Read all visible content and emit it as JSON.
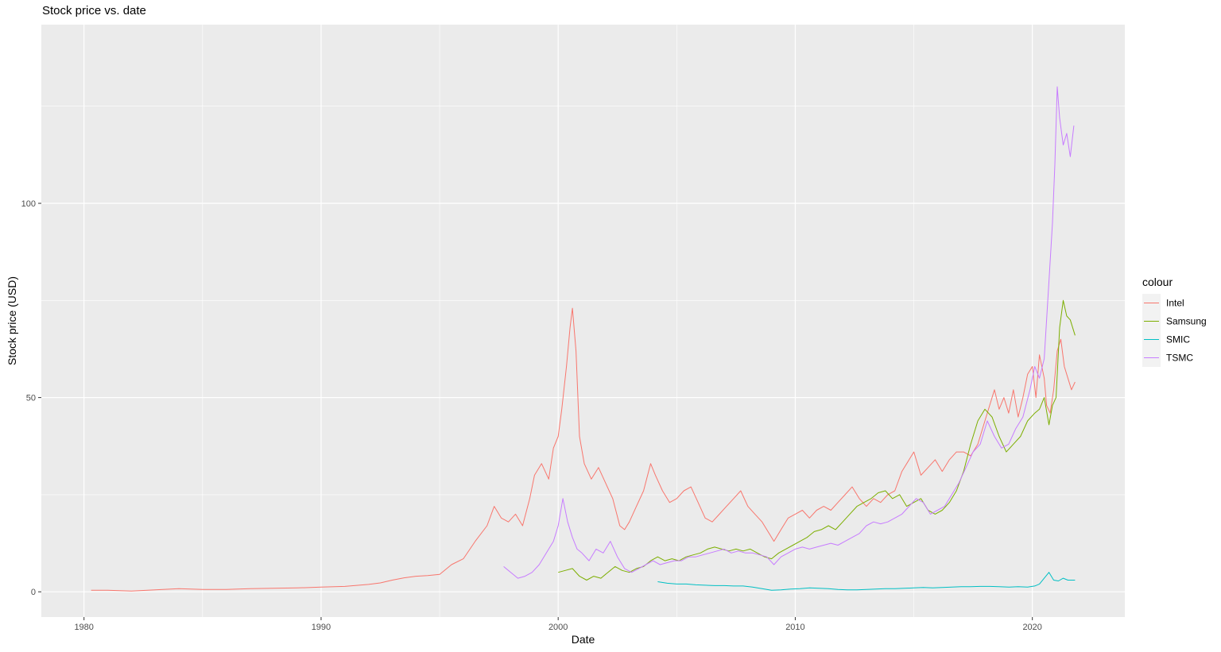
{
  "chart_data": {
    "type": "line",
    "title": "Stock price vs. date",
    "xlabel": "Date",
    "ylabel": "Stock price (USD)",
    "xlim": [
      1978.2,
      2023.9
    ],
    "ylim": [
      -6.5,
      146
    ],
    "x_ticks": [
      1980,
      1990,
      2000,
      2010,
      2020
    ],
    "x_tick_labels": [
      "1980",
      "1990",
      "2000",
      "2010",
      "2020"
    ],
    "y_ticks": [
      0,
      50,
      100
    ],
    "y_tick_labels": [
      "0",
      "50",
      "100"
    ],
    "grid": true,
    "legend": {
      "title": "colour",
      "position": "right"
    },
    "colors": {
      "panel": "#ebebeb",
      "grid": "#ffffff",
      "Intel": "#F8766D",
      "Samsung": "#7CAE00",
      "SMIC": "#00BFC4",
      "TSMC": "#C77CFF"
    },
    "series": [
      {
        "name": "Intel",
        "color": "#F8766D",
        "x": [
          1980.3,
          1981,
          1982,
          1983,
          1984,
          1985,
          1986,
          1987,
          1988,
          1989,
          1990,
          1991,
          1992,
          1992.5,
          1993,
          1993.5,
          1994,
          1994.5,
          1995,
          1995.5,
          1996,
          1996.5,
          1997,
          1997.3,
          1997.6,
          1997.9,
          1998.2,
          1998.5,
          1998.8,
          1999,
          1999.3,
          1999.6,
          1999.8,
          2000,
          2000.15,
          2000.35,
          2000.5,
          2000.6,
          2000.75,
          2000.9,
          2001.1,
          2001.4,
          2001.7,
          2002,
          2002.3,
          2002.6,
          2002.8,
          2003,
          2003.3,
          2003.6,
          2003.9,
          2004.1,
          2004.4,
          2004.7,
          2005,
          2005.3,
          2005.6,
          2005.9,
          2006.2,
          2006.5,
          2006.8,
          2007.1,
          2007.4,
          2007.7,
          2008,
          2008.3,
          2008.6,
          2008.9,
          2009.1,
          2009.4,
          2009.7,
          2010,
          2010.3,
          2010.6,
          2010.9,
          2011.2,
          2011.5,
          2011.8,
          2012.1,
          2012.4,
          2012.7,
          2013,
          2013.3,
          2013.6,
          2013.9,
          2014.2,
          2014.5,
          2014.8,
          2015,
          2015.3,
          2015.6,
          2015.9,
          2016.2,
          2016.5,
          2016.8,
          2017.1,
          2017.4,
          2017.7,
          2018,
          2018.2,
          2018.4,
          2018.6,
          2018.8,
          2019,
          2019.2,
          2019.4,
          2019.6,
          2019.8,
          2020,
          2020.15,
          2020.3,
          2020.5,
          2020.6,
          2020.75,
          2020.9,
          2021.05,
          2021.2,
          2021.35,
          2021.5,
          2021.65,
          2021.8
        ],
        "values": [
          0.4,
          0.4,
          0.2,
          0.5,
          0.8,
          0.6,
          0.6,
          0.8,
          0.9,
          1.0,
          1.2,
          1.4,
          1.9,
          2.3,
          3.0,
          3.6,
          4.0,
          4.2,
          4.5,
          7.0,
          8.5,
          13.0,
          17.0,
          22.0,
          19.0,
          18.0,
          20.0,
          17.0,
          24.0,
          30.0,
          33.0,
          29.0,
          37.0,
          40.0,
          47.0,
          58.0,
          68.0,
          73.0,
          62.0,
          40.0,
          33.0,
          29.0,
          32.0,
          28.0,
          24.0,
          17.0,
          16.0,
          18.0,
          22.0,
          26.0,
          33.0,
          30.0,
          26.0,
          23.0,
          24.0,
          26.0,
          27.0,
          23.0,
          19.0,
          18.0,
          20.0,
          22.0,
          24.0,
          26.0,
          22.0,
          20.0,
          18.0,
          15.0,
          13.0,
          16.0,
          19.0,
          20.0,
          21.0,
          19.0,
          21.0,
          22.0,
          21.0,
          23.0,
          25.0,
          27.0,
          24.0,
          22.0,
          24.0,
          23.0,
          25.0,
          26.0,
          31.0,
          34.0,
          36.0,
          30.0,
          32.0,
          34.0,
          31.0,
          34.0,
          36.0,
          36.0,
          35.0,
          38.0,
          44.0,
          48.0,
          52.0,
          47.0,
          50.0,
          46.0,
          52.0,
          45.0,
          50.0,
          56.0,
          58.0,
          50.0,
          61.0,
          55.0,
          48.0,
          46.0,
          52.0,
          62.0,
          65.0,
          58.0,
          55.0,
          52.0,
          54.0
        ]
      },
      {
        "name": "Samsung",
        "color": "#7CAE00",
        "x": [
          2000.0,
          2000.3,
          2000.6,
          2000.9,
          2001.2,
          2001.5,
          2001.8,
          2002.1,
          2002.4,
          2002.7,
          2003.0,
          2003.3,
          2003.6,
          2003.9,
          2004.2,
          2004.5,
          2004.8,
          2005.1,
          2005.4,
          2005.7,
          2006.0,
          2006.3,
          2006.6,
          2006.9,
          2007.2,
          2007.5,
          2007.8,
          2008.1,
          2008.4,
          2008.7,
          2009.0,
          2009.3,
          2009.6,
          2009.9,
          2010.2,
          2010.5,
          2010.8,
          2011.1,
          2011.4,
          2011.7,
          2012.0,
          2012.3,
          2012.6,
          2012.9,
          2013.2,
          2013.5,
          2013.8,
          2014.1,
          2014.4,
          2014.7,
          2015.0,
          2015.3,
          2015.6,
          2015.9,
          2016.2,
          2016.5,
          2016.8,
          2017.1,
          2017.4,
          2017.7,
          2018.0,
          2018.3,
          2018.6,
          2018.9,
          2019.2,
          2019.5,
          2019.8,
          2020.1,
          2020.3,
          2020.5,
          2020.7,
          2020.85,
          2021.0,
          2021.15,
          2021.3,
          2021.45,
          2021.6,
          2021.8
        ],
        "values": [
          5.0,
          5.5,
          6.0,
          4.0,
          3.0,
          4.0,
          3.5,
          5.0,
          6.5,
          5.5,
          5.0,
          6.0,
          6.5,
          8.0,
          9.0,
          8.0,
          8.5,
          8.0,
          9.0,
          9.5,
          10.0,
          11.0,
          11.5,
          11.0,
          10.5,
          11.0,
          10.5,
          11.0,
          10.0,
          9.0,
          8.5,
          10.0,
          11.0,
          12.0,
          13.0,
          14.0,
          15.5,
          16.0,
          17.0,
          16.0,
          18.0,
          20.0,
          22.0,
          23.0,
          24.0,
          25.5,
          26.0,
          24.0,
          25.0,
          22.0,
          23.0,
          24.0,
          21.0,
          20.0,
          21.0,
          23.0,
          26.0,
          31.0,
          38.0,
          44.0,
          47.0,
          45.0,
          40.0,
          36.0,
          38.0,
          40.0,
          44.0,
          46.0,
          47.0,
          50.0,
          43.0,
          48.0,
          50.0,
          68.0,
          75.0,
          71.0,
          70.0,
          66.0
        ]
      },
      {
        "name": "SMIC",
        "color": "#00BFC4",
        "x": [
          2004.2,
          2004.6,
          2005.0,
          2005.4,
          2005.8,
          2006.2,
          2006.6,
          2007.0,
          2007.4,
          2007.8,
          2008.2,
          2008.6,
          2009.0,
          2009.4,
          2009.8,
          2010.2,
          2010.6,
          2011.0,
          2011.4,
          2011.8,
          2012.2,
          2012.6,
          2013.0,
          2013.4,
          2013.8,
          2014.2,
          2014.6,
          2015.0,
          2015.4,
          2015.8,
          2016.2,
          2016.6,
          2017.0,
          2017.4,
          2017.8,
          2018.2,
          2018.6,
          2019.0,
          2019.4,
          2019.8,
          2020.1,
          2020.3,
          2020.5,
          2020.7,
          2020.9,
          2021.1,
          2021.3,
          2021.5,
          2021.8
        ],
        "values": [
          2.6,
          2.2,
          2.0,
          2.0,
          1.8,
          1.7,
          1.6,
          1.6,
          1.5,
          1.5,
          1.2,
          0.8,
          0.4,
          0.5,
          0.7,
          0.8,
          1.0,
          0.9,
          0.8,
          0.6,
          0.5,
          0.5,
          0.6,
          0.7,
          0.8,
          0.8,
          0.9,
          1.0,
          1.1,
          1.0,
          1.1,
          1.2,
          1.3,
          1.3,
          1.4,
          1.4,
          1.3,
          1.2,
          1.3,
          1.2,
          1.5,
          2.0,
          3.5,
          5.0,
          3.0,
          2.8,
          3.5,
          3.0,
          3.0
        ]
      },
      {
        "name": "TSMC",
        "color": "#C77CFF",
        "x": [
          1997.7,
          1998.0,
          1998.3,
          1998.6,
          1998.9,
          1999.2,
          1999.5,
          1999.8,
          2000.0,
          2000.2,
          2000.4,
          2000.6,
          2000.8,
          2001.0,
          2001.3,
          2001.6,
          2001.9,
          2002.2,
          2002.5,
          2002.8,
          2003.1,
          2003.4,
          2003.7,
          2004.0,
          2004.3,
          2004.6,
          2004.9,
          2005.2,
          2005.5,
          2005.8,
          2006.1,
          2006.4,
          2006.7,
          2007.0,
          2007.3,
          2007.6,
          2007.9,
          2008.2,
          2008.5,
          2008.8,
          2009.1,
          2009.4,
          2009.7,
          2010.0,
          2010.3,
          2010.6,
          2010.9,
          2011.2,
          2011.5,
          2011.8,
          2012.1,
          2012.4,
          2012.7,
          2013.0,
          2013.3,
          2013.6,
          2013.9,
          2014.2,
          2014.5,
          2014.8,
          2015.1,
          2015.4,
          2015.7,
          2016.0,
          2016.3,
          2016.6,
          2016.9,
          2017.2,
          2017.5,
          2017.8,
          2018.1,
          2018.4,
          2018.7,
          2019.0,
          2019.3,
          2019.6,
          2019.9,
          2020.1,
          2020.3,
          2020.5,
          2020.7,
          2020.85,
          2020.95,
          2021.05,
          2021.15,
          2021.3,
          2021.45,
          2021.6,
          2021.75
        ],
        "values": [
          6.5,
          5.0,
          3.5,
          4.0,
          5.0,
          7.0,
          10.0,
          13.0,
          17.0,
          24.0,
          18.0,
          14.0,
          11.0,
          10.0,
          8.0,
          11.0,
          10.0,
          13.0,
          9.0,
          6.0,
          5.0,
          6.0,
          7.0,
          8.0,
          7.0,
          7.5,
          8.0,
          8.0,
          9.0,
          9.0,
          9.5,
          10.0,
          10.5,
          11.0,
          10.0,
          10.5,
          10.0,
          10.0,
          9.5,
          9.0,
          7.0,
          9.0,
          10.0,
          11.0,
          11.5,
          11.0,
          11.5,
          12.0,
          12.5,
          12.0,
          13.0,
          14.0,
          15.0,
          17.0,
          18.0,
          17.5,
          18.0,
          19.0,
          20.0,
          22.0,
          24.0,
          23.0,
          20.0,
          21.0,
          22.0,
          25.0,
          28.0,
          32.0,
          36.0,
          38.0,
          44.0,
          40.0,
          37.0,
          38.0,
          42.0,
          45.0,
          52.0,
          58.0,
          55.0,
          60.0,
          80.0,
          95.0,
          110.0,
          130.0,
          122.0,
          115.0,
          118.0,
          112.0,
          120.0
        ]
      }
    ]
  }
}
